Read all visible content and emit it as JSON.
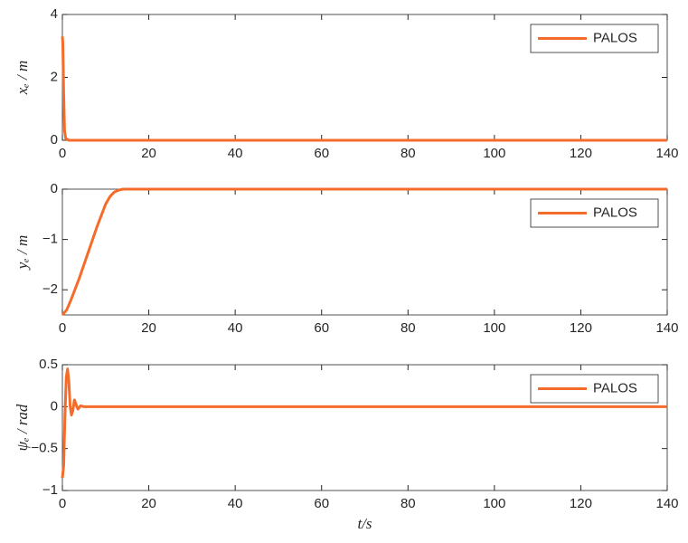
{
  "chart_data": [
    {
      "type": "line",
      "x": [
        0,
        0.1,
        0.3,
        0.5,
        0.8,
        1.5,
        5,
        20,
        140
      ],
      "series": [
        {
          "name": "PALOS",
          "color": "#f56b2a",
          "values": [
            3.3,
            3.1,
            1.5,
            0.3,
            0.05,
            0,
            0,
            0,
            0
          ]
        }
      ],
      "ylabel": "xₑ / m",
      "xlim": [
        0,
        140
      ],
      "xticks": [
        0,
        20,
        40,
        60,
        80,
        100,
        120,
        140
      ],
      "ylim": [
        0,
        4
      ],
      "yticks": [
        0,
        2,
        4
      ],
      "legend": "upper right"
    },
    {
      "type": "line",
      "x": [
        0,
        1,
        2,
        4,
        6,
        8,
        10,
        11,
        12,
        13,
        14,
        140
      ],
      "series": [
        {
          "name": "PALOS",
          "color": "#f56b2a",
          "values": [
            -2.5,
            -2.4,
            -2.2,
            -1.75,
            -1.25,
            -0.75,
            -0.3,
            -0.15,
            -0.06,
            -0.02,
            0,
            0
          ]
        }
      ],
      "ylabel": "yₑ / m",
      "xlim": [
        0,
        140
      ],
      "xticks": [
        0,
        20,
        40,
        60,
        80,
        100,
        120,
        140
      ],
      "ylim": [
        -2.5,
        0
      ],
      "yticks": [
        {
          "value": -2,
          "label": "−2"
        },
        {
          "value": -1,
          "label": "−1"
        },
        0
      ],
      "legend": "upper right"
    },
    {
      "type": "line",
      "x": [
        0,
        0.3,
        0.6,
        0.9,
        1.2,
        1.5,
        1.8,
        2.1,
        2.4,
        2.8,
        3.2,
        3.6,
        4.2,
        5,
        140
      ],
      "series": [
        {
          "name": "PALOS",
          "color": "#f56b2a",
          "values": [
            -0.85,
            -0.7,
            -0.1,
            0.35,
            0.45,
            0.3,
            0,
            -0.1,
            -0.05,
            0.08,
            0.02,
            -0.03,
            0.01,
            0,
            0
          ]
        }
      ],
      "ylabel": "ψₑ / rad",
      "xlabel": "t/s",
      "xlim": [
        0,
        140
      ],
      "xticks": [
        0,
        20,
        40,
        60,
        80,
        100,
        120,
        140
      ],
      "ylim": [
        -1,
        0.5
      ],
      "yticks": [
        {
          "value": -1,
          "label": "−1"
        },
        {
          "value": -0.5,
          "label": "−0.5"
        },
        0,
        0.5
      ],
      "legend": "upper right"
    }
  ]
}
